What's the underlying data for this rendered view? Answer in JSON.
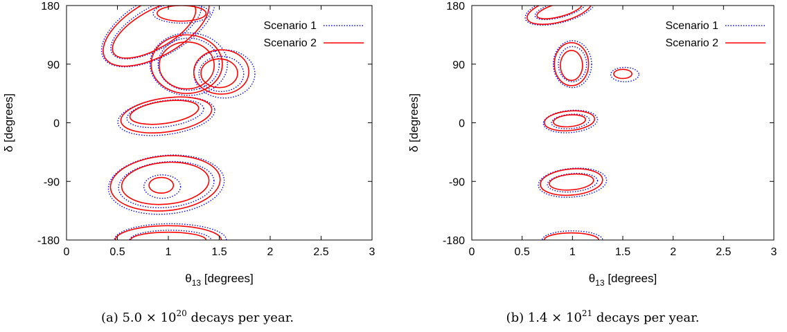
{
  "colors": {
    "scenario1": "#0000ff",
    "scenario2": "#ff0000",
    "axis": "#000000"
  },
  "chart_data": [
    {
      "type": "contour",
      "panel": "a",
      "caption": {
        "prefix": "(a) 5.0 × 10",
        "exp": "20",
        "suffix": " decays per year."
      },
      "xlabel": {
        "symbol": "θ",
        "sub": "13",
        "rest": " [degrees]"
      },
      "ylabel": "δ [degrees]",
      "xlim": [
        0,
        3
      ],
      "ylim": [
        -180,
        180
      ],
      "xticks": [
        "0",
        "0.5",
        "1",
        "1.5",
        "2",
        "2.5",
        "3"
      ],
      "yticks": [
        "-180",
        "-90",
        "0",
        "90",
        "180"
      ],
      "legend": [
        "Scenario 1",
        "Scenario 2"
      ],
      "legend_position": "top-right",
      "series": [
        {
          "name": "Scenario 1",
          "style": "dotted",
          "contours": [
            {
              "cx": 0.9,
              "cy": 148,
              "rx": 0.62,
              "ry": 45,
              "rot": -30
            },
            {
              "cx": 0.88,
              "cy": 146,
              "rx": 0.5,
              "ry": 32,
              "rot": -30
            },
            {
              "cx": 1.13,
              "cy": 168,
              "rx": 0.28,
              "ry": 15,
              "rot": 0
            },
            {
              "cx": 1.2,
              "cy": 90,
              "rx": 0.38,
              "ry": 48,
              "rot": 0
            },
            {
              "cx": 1.2,
              "cy": 90,
              "rx": 0.3,
              "ry": 40,
              "rot": 0
            },
            {
              "cx": 1.55,
              "cy": 75,
              "rx": 0.3,
              "ry": 37,
              "rot": 0
            },
            {
              "cx": 1.52,
              "cy": 75,
              "rx": 0.22,
              "ry": 27,
              "rot": 0
            },
            {
              "cx": 0.98,
              "cy": 10,
              "rx": 0.48,
              "ry": 28,
              "rot": -8
            },
            {
              "cx": 0.97,
              "cy": 14,
              "rx": 0.38,
              "ry": 20,
              "rot": -8
            },
            {
              "cx": 0.98,
              "cy": -95,
              "rx": 0.57,
              "ry": 45,
              "rot": -5
            },
            {
              "cx": 0.98,
              "cy": -95,
              "rx": 0.47,
              "ry": 35,
              "rot": -5
            },
            {
              "cx": 0.94,
              "cy": -98,
              "rx": 0.18,
              "ry": 18,
              "rot": 0
            },
            {
              "cx": 1.02,
              "cy": -180,
              "rx": 0.55,
              "ry": 25,
              "rot": 0
            },
            {
              "cx": 1.02,
              "cy": -180,
              "rx": 0.4,
              "ry": 15,
              "rot": 0
            }
          ]
        },
        {
          "name": "Scenario 2",
          "style": "solid",
          "contours": [
            {
              "cx": 0.88,
              "cy": 145,
              "rx": 0.58,
              "ry": 42,
              "rot": -30
            },
            {
              "cx": 0.86,
              "cy": 143,
              "rx": 0.46,
              "ry": 29,
              "rot": -30
            },
            {
              "cx": 1.13,
              "cy": 168,
              "rx": 0.24,
              "ry": 12,
              "rot": 0
            },
            {
              "cx": 1.18,
              "cy": 90,
              "rx": 0.35,
              "ry": 45,
              "rot": 0
            },
            {
              "cx": 1.18,
              "cy": 88,
              "rx": 0.27,
              "ry": 36,
              "rot": 0
            },
            {
              "cx": 1.52,
              "cy": 78,
              "rx": 0.27,
              "ry": 34,
              "rot": 0
            },
            {
              "cx": 1.5,
              "cy": 76,
              "rx": 0.18,
              "ry": 22,
              "rot": 0
            },
            {
              "cx": 0.98,
              "cy": 12,
              "rx": 0.45,
              "ry": 26,
              "rot": -8
            },
            {
              "cx": 0.96,
              "cy": 16,
              "rx": 0.34,
              "ry": 17,
              "rot": -8
            },
            {
              "cx": 0.97,
              "cy": -93,
              "rx": 0.54,
              "ry": 42,
              "rot": -5
            },
            {
              "cx": 0.97,
              "cy": -93,
              "rx": 0.43,
              "ry": 32,
              "rot": -5
            },
            {
              "cx": 0.93,
              "cy": -96,
              "rx": 0.12,
              "ry": 12,
              "rot": 0
            },
            {
              "cx": 1.0,
              "cy": -180,
              "rx": 0.52,
              "ry": 22,
              "rot": 0
            },
            {
              "cx": 1.0,
              "cy": -180,
              "rx": 0.37,
              "ry": 12,
              "rot": 0
            }
          ]
        }
      ]
    },
    {
      "type": "contour",
      "panel": "b",
      "caption": {
        "prefix": "(b) 1.4 × 10",
        "exp": "21",
        "suffix": " decays per year."
      },
      "xlabel": {
        "symbol": "θ",
        "sub": "13",
        "rest": " [degrees]"
      },
      "ylabel": "δ [degrees]",
      "xlim": [
        0,
        3
      ],
      "ylim": [
        -180,
        180
      ],
      "xticks": [
        "0",
        "0.5",
        "1",
        "1.5",
        "2",
        "2.5",
        "3"
      ],
      "yticks": [
        "-180",
        "-90",
        "0",
        "90",
        "180"
      ],
      "legend": [
        "Scenario 1",
        "Scenario 2"
      ],
      "legend_position": "top-right",
      "series": [
        {
          "name": "Scenario 1",
          "style": "dotted",
          "contours": [
            {
              "cx": 0.88,
              "cy": 174,
              "rx": 0.36,
              "ry": 20,
              "rot": -15
            },
            {
              "cx": 0.88,
              "cy": 174,
              "rx": 0.26,
              "ry": 12,
              "rot": -15
            },
            {
              "cx": 1.0,
              "cy": 90,
              "rx": 0.19,
              "ry": 36,
              "rot": 0
            },
            {
              "cx": 1.0,
              "cy": 90,
              "rx": 0.14,
              "ry": 27,
              "rot": 0
            },
            {
              "cx": 1.52,
              "cy": 74,
              "rx": 0.14,
              "ry": 11,
              "rot": 0
            },
            {
              "cx": 0.98,
              "cy": 2,
              "rx": 0.27,
              "ry": 17,
              "rot": -5
            },
            {
              "cx": 0.98,
              "cy": 2,
              "rx": 0.19,
              "ry": 11,
              "rot": -5
            },
            {
              "cx": 1.0,
              "cy": -92,
              "rx": 0.34,
              "ry": 22,
              "rot": -5
            },
            {
              "cx": 1.0,
              "cy": -92,
              "rx": 0.25,
              "ry": 14,
              "rot": -5
            },
            {
              "cx": 1.0,
              "cy": -180,
              "rx": 0.3,
              "ry": 14,
              "rot": 0
            }
          ]
        },
        {
          "name": "Scenario 2",
          "style": "solid",
          "contours": [
            {
              "cx": 0.87,
              "cy": 173,
              "rx": 0.33,
              "ry": 18,
              "rot": -15
            },
            {
              "cx": 0.87,
              "cy": 173,
              "rx": 0.23,
              "ry": 10,
              "rot": -15
            },
            {
              "cx": 0.99,
              "cy": 90,
              "rx": 0.17,
              "ry": 33,
              "rot": 0
            },
            {
              "cx": 0.99,
              "cy": 88,
              "rx": 0.11,
              "ry": 23,
              "rot": 0
            },
            {
              "cx": 1.5,
              "cy": 75,
              "rx": 0.09,
              "ry": 7,
              "rot": 0
            },
            {
              "cx": 0.97,
              "cy": 3,
              "rx": 0.25,
              "ry": 15,
              "rot": -5
            },
            {
              "cx": 0.97,
              "cy": 3,
              "rx": 0.16,
              "ry": 9,
              "rot": -5
            },
            {
              "cx": 0.99,
              "cy": -91,
              "rx": 0.31,
              "ry": 20,
              "rot": -5
            },
            {
              "cx": 0.99,
              "cy": -91,
              "rx": 0.22,
              "ry": 12,
              "rot": -5
            },
            {
              "cx": 0.99,
              "cy": -180,
              "rx": 0.27,
              "ry": 11,
              "rot": 0
            }
          ]
        }
      ]
    }
  ]
}
